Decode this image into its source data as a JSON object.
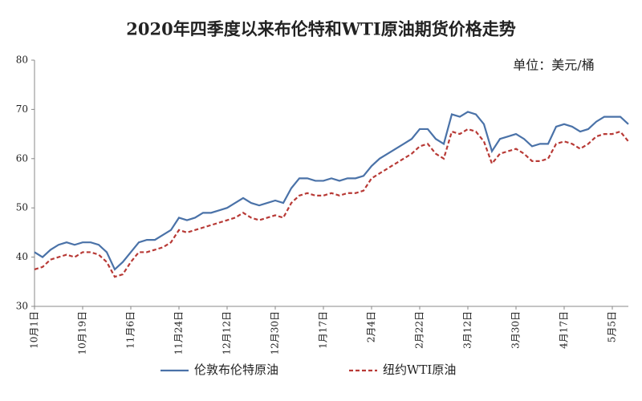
{
  "chart_data": {
    "type": "line",
    "title": "2020年四季度以来布伦特和WTI原油期货价格走势",
    "annotation": "单位：美元/桶",
    "categories": [
      "10月1日",
      null,
      null,
      null,
      null,
      null,
      "10月19日",
      null,
      null,
      null,
      null,
      null,
      "11月6日",
      null,
      null,
      null,
      null,
      null,
      "11月24日",
      null,
      null,
      null,
      null,
      null,
      "12月12日",
      null,
      null,
      null,
      null,
      null,
      "12月30日",
      null,
      null,
      null,
      null,
      null,
      "1月17日",
      null,
      null,
      null,
      null,
      null,
      "2月4日",
      null,
      null,
      null,
      null,
      null,
      "2月22日",
      null,
      null,
      null,
      null,
      null,
      "3月12日",
      null,
      null,
      null,
      null,
      null,
      "3月30日",
      null,
      null,
      null,
      null,
      null,
      "4月17日",
      null,
      null,
      null,
      null,
      null,
      "5月5日",
      null,
      null
    ],
    "series": [
      {
        "name": "伦敦布伦特原油",
        "color": "#4a72a8",
        "dash": false,
        "values": [
          41,
          40,
          41.5,
          42.5,
          43,
          42.5,
          43,
          43,
          42.5,
          41,
          37.5,
          39,
          41,
          43,
          43.5,
          43.5,
          44.5,
          45.5,
          48,
          47.5,
          48,
          49,
          49,
          49.5,
          50,
          51,
          52,
          51,
          50.5,
          51,
          51.5,
          51,
          54,
          56,
          56,
          55.5,
          55.5,
          56,
          55.5,
          56,
          56,
          56.5,
          58.5,
          60,
          61,
          62,
          63,
          64,
          66,
          66,
          64,
          63,
          69,
          68.5,
          69.5,
          69,
          67,
          61.5,
          64,
          64.5,
          65,
          64,
          62.5,
          63,
          63,
          66.5,
          67,
          66.5,
          65.5,
          66,
          67.5,
          68.5,
          68.5,
          68.5,
          67
        ]
      },
      {
        "name": "纽约WTI原油",
        "color": "#b83a36",
        "dash": true,
        "values": [
          37.5,
          38,
          39.5,
          40,
          40.5,
          40,
          41,
          41,
          40.5,
          39,
          36,
          36.5,
          39,
          41,
          41,
          41.5,
          42,
          43,
          45.5,
          45,
          45.5,
          46,
          46.5,
          47,
          47.5,
          48,
          49,
          48,
          47.5,
          48,
          48.5,
          48,
          51,
          52.5,
          53,
          52.5,
          52.5,
          53,
          52.5,
          53,
          53,
          53.5,
          56,
          57,
          58,
          59,
          60,
          61,
          62.5,
          63,
          61,
          60,
          65.5,
          65,
          66,
          65.5,
          63.5,
          59,
          61,
          61.5,
          62,
          61,
          59.5,
          59.5,
          60,
          63,
          63.5,
          63,
          62,
          63,
          64.5,
          65,
          65,
          65.5,
          63.5
        ]
      }
    ],
    "ylim": [
      30,
      80
    ],
    "yticks": [
      30,
      40,
      50,
      60,
      70,
      80
    ]
  }
}
